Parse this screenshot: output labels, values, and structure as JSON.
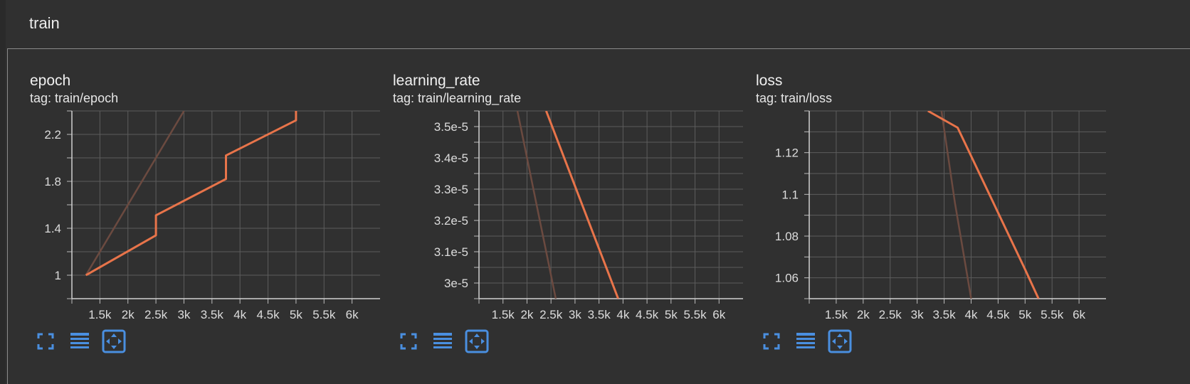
{
  "group": {
    "title": "train"
  },
  "colors": {
    "series": "#e8744a",
    "faded": "#6b4a40",
    "grid": "#5c5c5c",
    "icon": "#4a8fe0"
  },
  "toolbar_icons": [
    "fullscreen-icon",
    "toggle-log-scale-icon",
    "fit-domain-icon"
  ],
  "chart_data": [
    {
      "type": "line",
      "title": "epoch",
      "tag": "tag: train/epoch",
      "xlim": [
        1000,
        6500
      ],
      "ylim": [
        0.8,
        2.4
      ],
      "x_ticks": [
        1500,
        2000,
        2500,
        3000,
        3500,
        4000,
        4500,
        5000,
        5500,
        6000
      ],
      "x_tick_labels": [
        "1.5k",
        "2k",
        "2.5k",
        "3k",
        "3.5k",
        "4k",
        "4.5k",
        "5k",
        "5.5k",
        "6k"
      ],
      "y_ticks": [
        1,
        1.4,
        1.8,
        2.2
      ],
      "y_tick_labels": [
        "1",
        "1.4",
        "1.8",
        "2.2"
      ],
      "grid": true,
      "series": [
        {
          "x": [
            1250,
            3000
          ],
          "y": [
            1.0,
            2.4
          ],
          "style": "faded"
        },
        {
          "x": [
            1250,
            2500,
            2500,
            3750,
            3750,
            5000,
            5000
          ],
          "y": [
            1.0,
            1.34,
            1.51,
            1.82,
            2.02,
            2.32,
            2.45
          ],
          "style": "main"
        }
      ]
    },
    {
      "type": "line",
      "title": "learning_rate",
      "tag": "tag: train/learning_rate",
      "xlim": [
        1000,
        6500
      ],
      "ylim": [
        2.95e-05,
        3.55e-05
      ],
      "x_ticks": [
        1500,
        2000,
        2500,
        3000,
        3500,
        4000,
        4500,
        5000,
        5500,
        6000
      ],
      "x_tick_labels": [
        "1.5k",
        "2k",
        "2.5k",
        "3k",
        "3.5k",
        "4k",
        "4.5k",
        "5k",
        "5.5k",
        "6k"
      ],
      "y_ticks": [
        3e-05,
        3.1e-05,
        3.2e-05,
        3.3e-05,
        3.4e-05,
        3.5e-05
      ],
      "y_tick_labels": [
        "3e-5",
        "3.1e-5",
        "3.2e-5",
        "3.3e-5",
        "3.4e-5",
        "3.5e-5"
      ],
      "grid": true,
      "series": [
        {
          "x": [
            1800,
            2600
          ],
          "y": [
            3.55e-05,
            2.95e-05
          ],
          "style": "faded"
        },
        {
          "x": [
            2400,
            3900
          ],
          "y": [
            3.55e-05,
            2.95e-05
          ],
          "style": "main"
        }
      ]
    },
    {
      "type": "line",
      "title": "loss",
      "tag": "tag: train/loss",
      "xlim": [
        1000,
        6500
      ],
      "ylim": [
        1.05,
        1.14
      ],
      "x_ticks": [
        1500,
        2000,
        2500,
        3000,
        3500,
        4000,
        4500,
        5000,
        5500,
        6000
      ],
      "x_tick_labels": [
        "1.5k",
        "2k",
        "2.5k",
        "3k",
        "3.5k",
        "4k",
        "4.5k",
        "5k",
        "5.5k",
        "6k"
      ],
      "y_ticks": [
        1.06,
        1.08,
        1.1,
        1.12
      ],
      "y_tick_labels": [
        "1.06",
        "1.08",
        "1.1",
        "1.12"
      ],
      "grid": true,
      "series": [
        {
          "x": [
            3450,
            3700,
            4000
          ],
          "y": [
            1.14,
            1.096,
            1.05
          ],
          "style": "faded"
        },
        {
          "x": [
            3200,
            3750,
            5000,
            5250
          ],
          "y": [
            1.14,
            1.132,
            1.064,
            1.05
          ],
          "style": "main"
        }
      ]
    }
  ]
}
